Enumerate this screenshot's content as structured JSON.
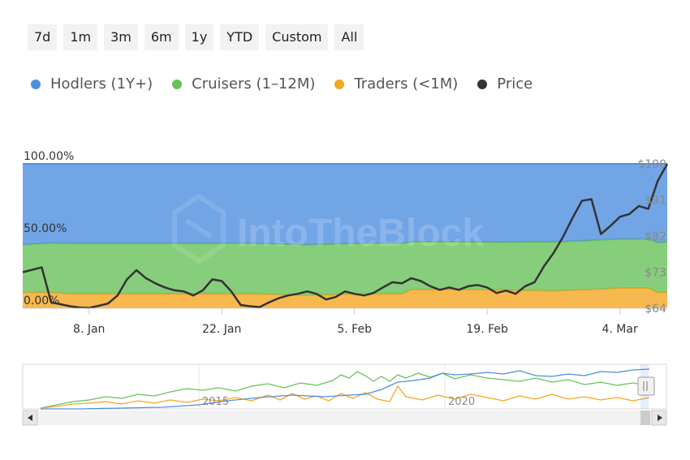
{
  "range_selector": {
    "buttons": [
      "7d",
      "1m",
      "3m",
      "6m",
      "1y",
      "YTD",
      "Custom",
      "All"
    ]
  },
  "legend": [
    {
      "label": "Hodlers (1Y+)",
      "color": "#4f8fe0"
    },
    {
      "label": "Cruisers (1–12M)",
      "color": "#68c25a"
    },
    {
      "label": "Traders (<1M)",
      "color": "#f5a623"
    },
    {
      "label": "Price",
      "color": "#333333"
    }
  ],
  "watermark": "IntoTheBlock",
  "chart_data": {
    "type": "area",
    "stacking": "percent",
    "ylim_left": [
      0,
      100
    ],
    "left_ticks": [
      "100.00%",
      "50.00%",
      "0.00%"
    ],
    "right_ticks": [
      "$100",
      "$91",
      "$82",
      "$73",
      "$64"
    ],
    "ylim_right": [
      64,
      100
    ],
    "x_ticks": [
      "8. Jan",
      "22. Jan",
      "5. Feb",
      "19. Feb",
      "4. Mar"
    ],
    "x_tick_positions": [
      7,
      21,
      35,
      49,
      63
    ],
    "x_range": [
      0,
      68
    ],
    "series": [
      {
        "name": "Traders (<1M)",
        "color": "#f5a623",
        "x": [
          0,
          3,
          5,
          10,
          16,
          20,
          24,
          30,
          36,
          40,
          41,
          48,
          56,
          60,
          63,
          66,
          67,
          68
        ],
        "values": [
          11,
          11,
          10,
          10,
          10,
          10,
          10,
          9,
          10,
          10,
          13,
          13,
          12,
          13,
          14,
          14,
          11,
          11
        ]
      },
      {
        "name": "Cruisers (1–12M)",
        "color": "#68c25a",
        "x": [
          0,
          5,
          10,
          20,
          30,
          37,
          40,
          41,
          50,
          56,
          60,
          66,
          68
        ],
        "values": [
          33,
          35,
          35,
          35,
          35,
          35,
          35,
          33,
          33,
          34,
          34,
          34,
          35
        ]
      },
      {
        "name": "Hodlers (1Y+)",
        "color": "#4f8fe0",
        "x": [
          0,
          68
        ],
        "values": [
          56,
          55
        ]
      },
      {
        "name": "Price",
        "color": "#333333",
        "axis": "right",
        "x": [
          0,
          2,
          3,
          5,
          6,
          7,
          8,
          9,
          10,
          11,
          12,
          13,
          14,
          15,
          16,
          17,
          18,
          19,
          20,
          21,
          22,
          23,
          24,
          25,
          26,
          27,
          28,
          29,
          30,
          31,
          32,
          33,
          34,
          35,
          36,
          37,
          38,
          39,
          40,
          41,
          42,
          43,
          44,
          45,
          46,
          47,
          48,
          49,
          50,
          51,
          52,
          53,
          54,
          55,
          56,
          57,
          58,
          59,
          60,
          61,
          62,
          63,
          64,
          65,
          66,
          67,
          68
        ],
        "values": [
          73,
          74.2,
          65.5,
          64.5,
          64.2,
          64.1,
          64.6,
          65.2,
          67.2,
          71.2,
          73.5,
          71.5,
          70.2,
          69.2,
          68.5,
          68.2,
          67.2,
          68.5,
          71.2,
          70.8,
          68.2,
          64.8,
          64.5,
          64.3,
          65.5,
          66.5,
          67.2,
          67.6,
          68.2,
          67.6,
          66.2,
          66.8,
          68.2,
          67.6,
          67.2,
          67.8,
          69.2,
          70.5,
          70.2,
          71.5,
          70.8,
          69.5,
          68.6,
          69.2,
          68.6,
          69.5,
          69.8,
          69.2,
          67.8,
          68.4,
          67.6,
          69.5,
          70.5,
          74.5,
          77.8,
          81.8,
          86.5,
          90.8,
          91.2,
          82.5,
          84.5,
          86.8,
          87.5,
          89.5,
          88.8,
          95.8,
          100
        ]
      }
    ]
  },
  "navigator": {
    "year_labels": [
      "2015",
      "2020"
    ],
    "scroll_left_arrow": "left-arrow",
    "scroll_right_arrow": "right-arrow",
    "handle_icon": "grip-icon"
  }
}
